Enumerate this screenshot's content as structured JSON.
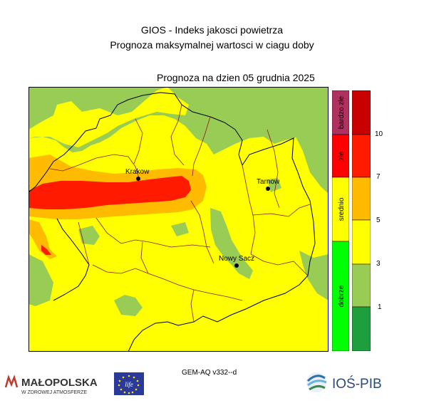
{
  "header": {
    "line1": "GIOS - Indeks jakosci powietrza",
    "line2": "Prognoza maksymalnej wartosci w ciagu doby",
    "forecast_date": "Prognoza na dzien  05 grudnia 2025"
  },
  "map": {
    "cities": [
      {
        "name": "Krakow"
      },
      {
        "name": "Tarnow"
      },
      {
        "name": "Nowy Sacz"
      }
    ],
    "colors": {
      "green_light": "#99cc55",
      "yellow": "#ffff00",
      "orange": "#ffbb00",
      "red": "#ff1a00",
      "border_region": "#000000",
      "border_district": "#8b1a1a"
    }
  },
  "legend": {
    "categories": [
      {
        "label": "bardzo złe",
        "color": "#b03060"
      },
      {
        "label": "złe",
        "color": "#ff0000"
      },
      {
        "label": "srednio",
        "color": "#ffff00"
      },
      {
        "label": "dobrze",
        "color": "#00ff00"
      }
    ],
    "scale_colors": [
      "#1e9e3c",
      "#99cc55",
      "#ffff00",
      "#ffbb00",
      "#ff1a00",
      "#c80000"
    ],
    "ticks": [
      "10",
      "7",
      "5",
      "3",
      "1"
    ]
  },
  "footer": {
    "model": "GEM-AQ v332--d",
    "malopolska_title": "MAŁOPOLSKA",
    "malopolska_sub": "W ZDROWEJ ATMOSFERZE",
    "eu_logo_text": "life",
    "ios_text": "IOŚ-PIB"
  }
}
